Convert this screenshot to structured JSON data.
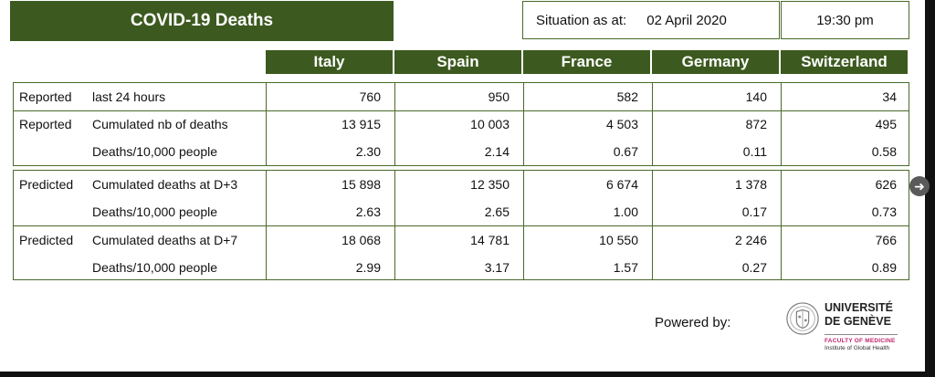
{
  "title": "COVID-19 Deaths",
  "situation": {
    "label": "Situation as at:",
    "date": "02 April 2020",
    "time": "19:30 pm"
  },
  "countries": [
    "Italy",
    "Spain",
    "France",
    "Germany",
    "Switzerland"
  ],
  "reported": {
    "rows": [
      {
        "type": "Reported",
        "desc": "last 24 hours",
        "values": [
          "760",
          "950",
          "582",
          "140",
          "34"
        ]
      },
      {
        "type": "Reported",
        "desc": "Cumulated nb of deaths",
        "values": [
          "13 915",
          "10 003",
          "4 503",
          "872",
          "495"
        ]
      },
      {
        "type": "",
        "desc": "Deaths/10,000 people",
        "values": [
          "2.30",
          "2.14",
          "0.67",
          "0.11",
          "0.58"
        ]
      }
    ]
  },
  "predicted": {
    "rows": [
      {
        "type": "Predicted",
        "desc": "Cumulated deaths at D+3",
        "values": [
          "15 898",
          "12 350",
          "6 674",
          "1 378",
          "626"
        ]
      },
      {
        "type": "",
        "desc": "Deaths/10,000 people",
        "values": [
          "2.63",
          "2.65",
          "1.00",
          "0.17",
          "0.73"
        ]
      },
      {
        "type": "Predicted",
        "desc": "Cumulated deaths at D+7",
        "values": [
          "18 068",
          "14 781",
          "10 550",
          "2 246",
          "766"
        ]
      },
      {
        "type": "",
        "desc": "Deaths/10,000 people",
        "values": [
          "2.99",
          "3.17",
          "1.57",
          "0.27",
          "0.89"
        ]
      }
    ]
  },
  "footer": {
    "powered_label": "Powered by:",
    "logo": {
      "line1": "UNIVERSITÉ",
      "line2": "DE GENÈVE",
      "faculty": "FACULTY OF MEDICINE",
      "institute": "Institute of Global Health"
    }
  },
  "colors": {
    "header_green": "#3c5a1f",
    "border_green": "#4a6a2a",
    "faculty_pink": "#c0266c"
  },
  "icons": {
    "next": "chevron-right-icon"
  }
}
